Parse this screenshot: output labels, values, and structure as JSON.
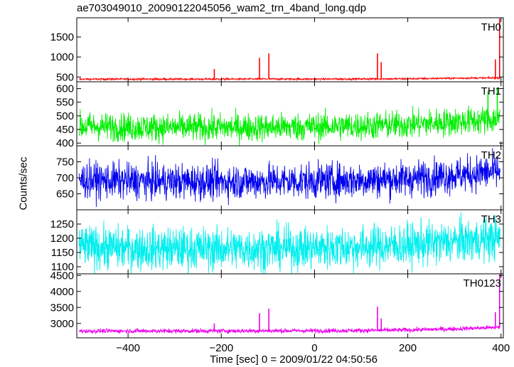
{
  "title": "ae703049010_20090122045056_wam2_trn_4band_long.qdp",
  "ylabel": "Counts/sec",
  "xlabel": "Time [sec] 0 = 2009/01/22 04:50:56",
  "chart_data": {
    "type": "line",
    "title": "ae703049010_20090122045056_wam2_trn_4band_long.qdp",
    "xlabel": "Time [sec] 0 = 2009/01/22 04:50:56",
    "ylabel": "Counts/sec",
    "xlim": [
      -510,
      405
    ],
    "x_ticks": [
      -400,
      -200,
      0,
      200,
      400
    ],
    "x_tick_labels": [
      "−400",
      "−200",
      "0",
      "200",
      "400"
    ],
    "grid": false,
    "panels": [
      {
        "name": "TH0",
        "color": "#ff0000",
        "ylim": [
          380,
          1980
        ],
        "y_ticks": [
          500,
          1000,
          1500
        ],
        "y_tick_labels": [
          "500",
          "1000",
          "1500"
        ],
        "series": [
          {
            "x": -500,
            "y": 445
          },
          {
            "x": -400,
            "y": 448
          },
          {
            "x": -300,
            "y": 446
          },
          {
            "x": -200,
            "y": 447
          },
          {
            "x": -100,
            "y": 450
          },
          {
            "x": 0,
            "y": 448
          },
          {
            "x": 100,
            "y": 452
          },
          {
            "x": 200,
            "y": 455
          },
          {
            "x": 300,
            "y": 470
          },
          {
            "x": 400,
            "y": 478
          }
        ],
        "peaks": [
          {
            "x": -215,
            "y": 700
          },
          {
            "x": -118,
            "y": 980
          },
          {
            "x": -98,
            "y": 1090
          },
          {
            "x": 135,
            "y": 1090
          },
          {
            "x": 143,
            "y": 870
          },
          {
            "x": 388,
            "y": 940
          },
          {
            "x": 397,
            "y": 1960
          }
        ]
      },
      {
        "name": "TH1",
        "color": "#00ee00",
        "ylim": [
          390,
          625
        ],
        "y_ticks": [
          400,
          450,
          500,
          550,
          600
        ],
        "y_tick_labels": [
          "400",
          "450",
          "500",
          "550",
          "600"
        ],
        "series": [
          {
            "x": -500,
            "y": 462
          },
          {
            "x": -400,
            "y": 458
          },
          {
            "x": -300,
            "y": 457
          },
          {
            "x": -200,
            "y": 457
          },
          {
            "x": -100,
            "y": 458
          },
          {
            "x": 0,
            "y": 460
          },
          {
            "x": 100,
            "y": 463
          },
          {
            "x": 200,
            "y": 468
          },
          {
            "x": 300,
            "y": 478
          },
          {
            "x": 400,
            "y": 488
          }
        ],
        "peaks": [
          {
            "x": 372,
            "y": 590
          },
          {
            "x": 392,
            "y": 605
          }
        ]
      },
      {
        "name": "TH2",
        "color": "#0000ee",
        "ylim": [
          600,
          800
        ],
        "y_ticks": [
          650,
          700,
          750
        ],
        "y_tick_labels": [
          "650",
          "700",
          "750"
        ],
        "series": [
          {
            "x": -500,
            "y": 693
          },
          {
            "x": -400,
            "y": 690
          },
          {
            "x": -300,
            "y": 688
          },
          {
            "x": -200,
            "y": 688
          },
          {
            "x": -100,
            "y": 689
          },
          {
            "x": 0,
            "y": 690
          },
          {
            "x": 100,
            "y": 693
          },
          {
            "x": 200,
            "y": 697
          },
          {
            "x": 300,
            "y": 708
          },
          {
            "x": 400,
            "y": 720
          }
        ],
        "peaks": []
      },
      {
        "name": "TH3",
        "color": "#00eeee",
        "ylim": [
          1075,
          1300
        ],
        "y_ticks": [
          1100,
          1150,
          1200,
          1250
        ],
        "y_tick_labels": [
          "1100",
          "1150",
          "1200",
          "1250"
        ],
        "series": [
          {
            "x": -500,
            "y": 1170
          },
          {
            "x": -400,
            "y": 1165
          },
          {
            "x": -300,
            "y": 1163
          },
          {
            "x": -200,
            "y": 1163
          },
          {
            "x": -100,
            "y": 1164
          },
          {
            "x": 0,
            "y": 1166
          },
          {
            "x": 100,
            "y": 1170
          },
          {
            "x": 200,
            "y": 1176
          },
          {
            "x": 300,
            "y": 1188
          },
          {
            "x": 400,
            "y": 1200
          }
        ],
        "peaks": []
      },
      {
        "name": "TH0123",
        "color": "#ee00ee",
        "ylim": [
          2550,
          4550
        ],
        "y_ticks": [
          3000,
          3500,
          4000,
          4500
        ],
        "y_tick_labels": [
          "3000",
          "3500",
          "4000",
          "4500"
        ],
        "series": [
          {
            "x": -500,
            "y": 2760
          },
          {
            "x": -400,
            "y": 2765
          },
          {
            "x": -300,
            "y": 2765
          },
          {
            "x": -200,
            "y": 2768
          },
          {
            "x": -100,
            "y": 2770
          },
          {
            "x": 0,
            "y": 2772
          },
          {
            "x": 100,
            "y": 2780
          },
          {
            "x": 200,
            "y": 2795
          },
          {
            "x": 300,
            "y": 2830
          },
          {
            "x": 400,
            "y": 2880
          }
        ],
        "peaks": [
          {
            "x": -215,
            "y": 3000
          },
          {
            "x": -118,
            "y": 3320
          },
          {
            "x": -98,
            "y": 3460
          },
          {
            "x": 135,
            "y": 3520
          },
          {
            "x": 143,
            "y": 3150
          },
          {
            "x": 388,
            "y": 3350
          },
          {
            "x": 397,
            "y": 4530
          }
        ]
      }
    ]
  }
}
